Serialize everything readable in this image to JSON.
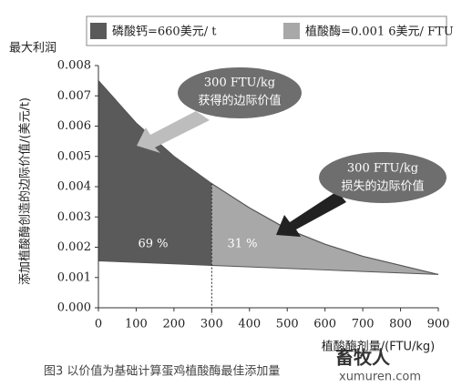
{
  "chart_data": {
    "type": "area",
    "title": "最大利润",
    "legend": [
      {
        "label": "磷酸钙=660美元/ t",
        "color": "#5a5a5a"
      },
      {
        "label": "植酸酶=0.001 6美元/ FTU",
        "color": "#a8a8a8"
      }
    ],
    "y_label": "添加植酸酶创造的边际价值/(美元/t)",
    "x_label": "植酸酶剂量/(FTU/kg)",
    "x": [
      0,
      100,
      200,
      300,
      400,
      500,
      600,
      700,
      800,
      900
    ],
    "curve": {
      "values": [
        0.0075,
        0.0061,
        0.005,
        0.0041,
        0.0033,
        0.0026,
        0.0021,
        0.0017,
        0.0014,
        0.0011
      ]
    },
    "baseline": {
      "values": [
        0.00155,
        0.0015,
        0.00145,
        0.0014,
        0.00135,
        0.0013,
        0.00125,
        0.0012,
        0.00115,
        0.0011
      ]
    },
    "split_x": 300,
    "xlim": [
      0,
      900
    ],
    "xticks": [
      0,
      100,
      200,
      300,
      400,
      500,
      600,
      700,
      800,
      900
    ],
    "ylim": [
      0,
      0.008
    ],
    "yticks": [
      {
        "value": 0,
        "label": "0.000"
      },
      {
        "value": 0.001,
        "label": "0.001"
      },
      {
        "value": 0.002,
        "label": "0.002"
      },
      {
        "value": 0.003,
        "label": "0.003"
      },
      {
        "value": 0.004,
        "label": "0.004"
      },
      {
        "value": 0.005,
        "label": "0.005"
      },
      {
        "value": 0.006,
        "label": "0.006"
      },
      {
        "value": 0.007,
        "label": "0.007"
      },
      {
        "value": 0.008,
        "label": "0.008"
      }
    ],
    "annotations": {
      "gain": "300 FTU/kg",
      "gain_text": "获得的边际价值",
      "loss": "300 FTU/kg",
      "loss_text": "损失的边际价值",
      "left_share": "69 %",
      "right_share": "31 %"
    },
    "caption": "图3 以价值为基础计算蛋鸡植酸酶最佳添加量",
    "watermark": [
      "畜牧人",
      "xumuren.com"
    ]
  }
}
